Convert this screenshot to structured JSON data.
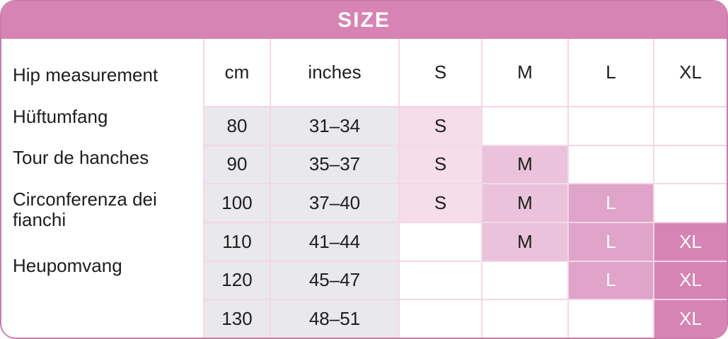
{
  "colors": {
    "header-pink": "#d783b4",
    "s-fill": "#f7dcea",
    "m-fill": "#ebc2db",
    "l-fill": "#e0a3c9",
    "xl-fill": "#d783b4",
    "neutral-fill": "#e9e8ec",
    "grid-line": "#f3d7e7",
    "outer-border": "#c97bab",
    "text-dark": "#1d1d1b"
  },
  "header": {
    "title": "SIZE"
  },
  "measurement_labels": [
    "Hip measurement",
    "Hüftumfang",
    "Tour de hanches",
    "Circonferenza dei fianchi",
    "Heupomvang"
  ],
  "column_headers": {
    "cm": "cm",
    "inches": "inches",
    "s": "S",
    "m": "M",
    "l": "L",
    "xl": "XL"
  },
  "rows": [
    {
      "cm": "80",
      "inches": "31–34",
      "s": "S",
      "m": "",
      "l": "",
      "xl": ""
    },
    {
      "cm": "90",
      "inches": "35–37",
      "s": "S",
      "m": "M",
      "l": "",
      "xl": ""
    },
    {
      "cm": "100",
      "inches": "37–40",
      "s": "S",
      "m": "M",
      "l": "L",
      "xl": ""
    },
    {
      "cm": "110",
      "inches": "41–44",
      "s": "",
      "m": "M",
      "l": "L",
      "xl": "XL"
    },
    {
      "cm": "120",
      "inches": "45–47",
      "s": "",
      "m": "",
      "l": "L",
      "xl": "XL"
    },
    {
      "cm": "130",
      "inches": "48–51",
      "s": "",
      "m": "",
      "l": "",
      "xl": "XL"
    }
  ]
}
